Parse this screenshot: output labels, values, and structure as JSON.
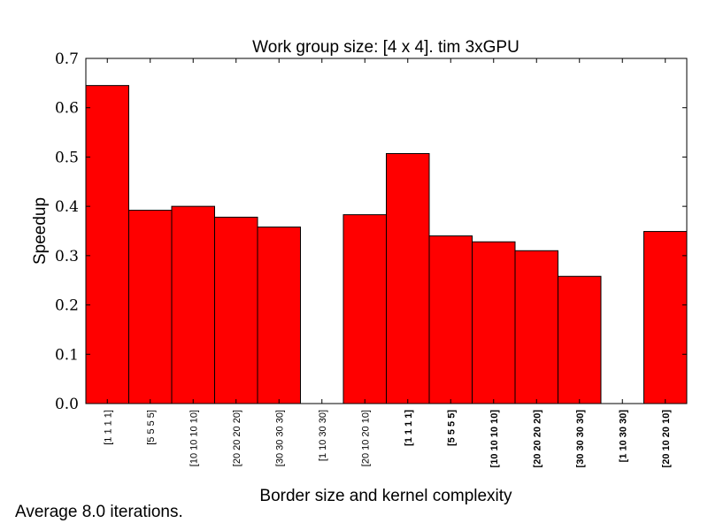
{
  "chart_data": {
    "type": "bar",
    "title": "Work group size: [4 x 4]. tim 3xGPU",
    "xlabel": "Border size and kernel complexity",
    "ylabel": "Speedup",
    "ylim": [
      0,
      0.7
    ],
    "yticks": [
      "0.0",
      "0.1",
      "0.2",
      "0.3",
      "0.4",
      "0.5",
      "0.6",
      "0.7"
    ],
    "bar_color": "#ff0000",
    "grid": false,
    "categories": [
      "[1 1 1 1]",
      "[5 5 5 5]",
      "[10 10 10 10]",
      "[20 20 20 20]",
      "[30 30 30 30]",
      "[1 10 30 30]",
      "[20 10 20 10]",
      "[1 1 1 1]",
      "[5 5 5 5]",
      "[10 10 10 10]",
      "[20 20 20 20]",
      "[30 30 30 30]",
      "[1 10 30 30]",
      "[20 10 20 10]"
    ],
    "bold_categories": [
      false,
      false,
      false,
      false,
      false,
      false,
      false,
      true,
      true,
      true,
      true,
      true,
      true,
      true
    ],
    "values": [
      0.645,
      0.392,
      0.4,
      0.378,
      0.358,
      0.0,
      0.383,
      0.507,
      0.34,
      0.328,
      0.31,
      0.258,
      0.0,
      0.349
    ]
  },
  "footnote": "Average 8.0 iterations."
}
